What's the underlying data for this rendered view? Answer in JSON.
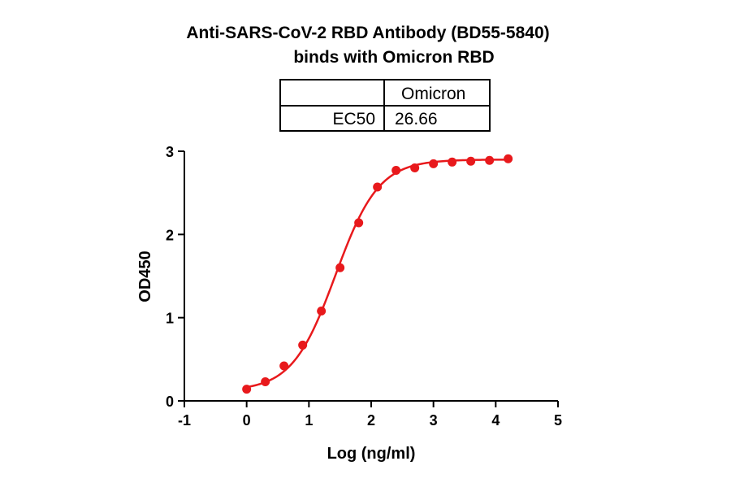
{
  "chart_data": {
    "type": "scatter",
    "title_line1": "Anti-SARS-CoV-2 RBD Antibody (BD55-5840)",
    "title_line2": "binds with Omicron RBD",
    "xlabel": "Log (ng/ml)",
    "ylabel": "OD450",
    "xlim": [
      -1,
      5
    ],
    "ylim": [
      0,
      3
    ],
    "xticks": [
      "-1",
      "0",
      "1",
      "2",
      "3",
      "4",
      "5"
    ],
    "yticks": [
      "0",
      "1",
      "2",
      "3"
    ],
    "color": "#e8191c",
    "series": [
      {
        "x": [
          0.0,
          0.3,
          0.6,
          0.9,
          1.2,
          1.5,
          1.8,
          2.1,
          2.4,
          2.7,
          3.0,
          3.3,
          3.6,
          3.9,
          4.2
        ],
        "y": [
          0.14,
          0.23,
          0.42,
          0.67,
          1.08,
          1.6,
          2.14,
          2.57,
          2.77,
          2.8,
          2.85,
          2.87,
          2.88,
          2.89,
          2.91
        ]
      }
    ],
    "fit": {
      "bottom": 0.12,
      "top": 2.9,
      "log_ec50": 1.4258,
      "hill": 1.25
    },
    "ec50_table": {
      "header": "Omicron",
      "row_label": "EC50",
      "value": "26.66"
    }
  }
}
